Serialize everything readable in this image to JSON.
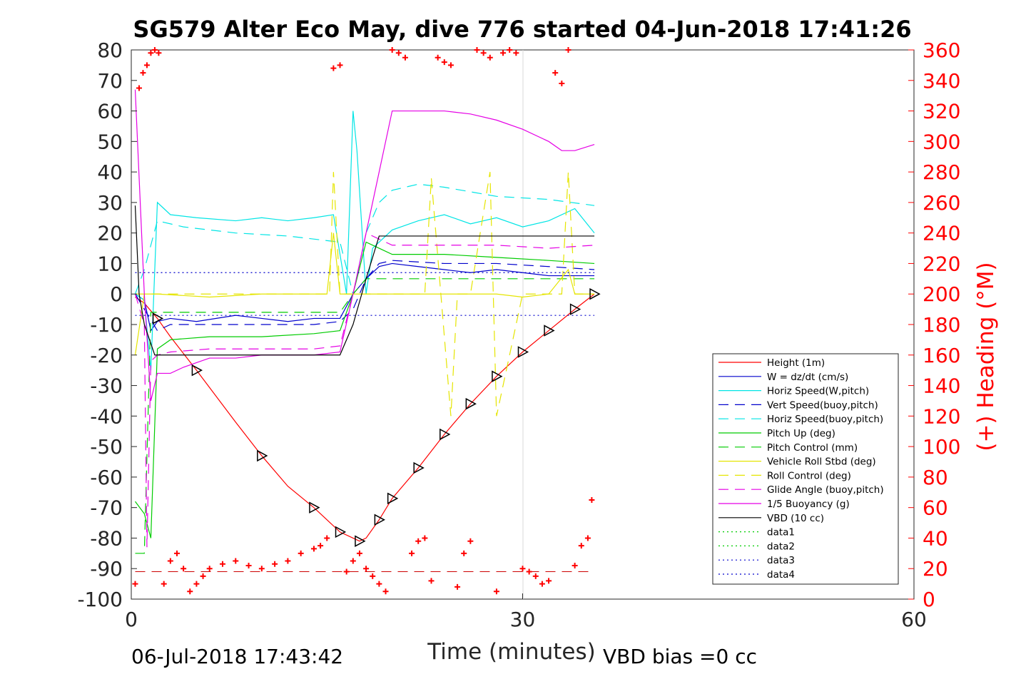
{
  "chart_data": {
    "type": "line",
    "title": "SG579 Alter Eco May, dive 776 started 04-Jun-2018 17:41:26",
    "xlabel": "Time (minutes)",
    "ylabel": "",
    "y2label": "(+) Heading (°M)",
    "xlim": [
      0,
      60
    ],
    "ylim": [
      -100,
      80
    ],
    "y2lim": [
      0,
      360
    ],
    "xticks": [
      0,
      30,
      60
    ],
    "yticks": [
      80,
      70,
      60,
      50,
      40,
      30,
      20,
      10,
      0,
      -10,
      -20,
      -30,
      -40,
      -50,
      -60,
      -70,
      -80,
      -90,
      -100
    ],
    "y2ticks": [
      360,
      340,
      320,
      300,
      280,
      260,
      240,
      220,
      200,
      180,
      160,
      140,
      120,
      100,
      80,
      60,
      40,
      20,
      0
    ],
    "grid": "x only at 30",
    "legend_position": "lower-right",
    "footer_left": "06-Jul-2018 17:43:42",
    "footer_right": "VBD bias =0 cc",
    "series": [
      {
        "name": "Height (1m)",
        "color": "#ff0000",
        "dash": "solid",
        "x": [
          0.3,
          1,
          2,
          3,
          5,
          8,
          10,
          12,
          14,
          15,
          16,
          17,
          17.5,
          18,
          19,
          20,
          22,
          24,
          26,
          28,
          30,
          32,
          34,
          35.5
        ],
        "y": [
          -1,
          -3,
          -8,
          -14,
          -25,
          -42,
          -53,
          -63,
          -70,
          -74,
          -78,
          -80,
          -81,
          -80,
          -74,
          -67,
          -57,
          -46,
          -36,
          -27,
          -19,
          -12,
          -5,
          0
        ]
      },
      {
        "name": "W = dz/dt (cm/s)",
        "color": "#0000cc",
        "dash": "solid",
        "x": [
          0.3,
          1,
          1.5,
          2,
          3,
          5,
          8,
          10,
          12,
          14,
          16,
          17,
          18,
          19,
          20,
          22,
          24,
          26,
          28,
          30,
          32,
          34,
          35.5
        ],
        "y": [
          0,
          -2,
          -12,
          -9,
          -8,
          -9,
          -7,
          -8,
          -9,
          -8,
          -8,
          0,
          5,
          9,
          10,
          9,
          8,
          7,
          8,
          7,
          6,
          6,
          6
        ]
      },
      {
        "name": "Horiz Speed(W,pitch)",
        "color": "#00e5e5",
        "dash": "solid",
        "x": [
          0.3,
          1,
          1.5,
          2,
          3,
          5,
          8,
          10,
          12,
          14,
          15.5,
          16.5,
          17,
          17.3,
          18,
          18.5,
          20,
          22,
          24,
          26,
          28,
          30,
          32,
          34,
          35.5
        ],
        "y": [
          0,
          -2,
          -25,
          30,
          26,
          25,
          24,
          25,
          24,
          25,
          26,
          0,
          60,
          47,
          0,
          15,
          21,
          24,
          26,
          23,
          25,
          22,
          24,
          28,
          20
        ]
      },
      {
        "name": "Vert Speed(buoy,pitch)",
        "color": "#0000cc",
        "dash": "long",
        "x": [
          0.3,
          1,
          2,
          3,
          6,
          10,
          14,
          16,
          17,
          18,
          19,
          20,
          24,
          28,
          32,
          35.5
        ],
        "y": [
          0,
          -5,
          -12,
          -10,
          -10,
          -10,
          -10,
          -9,
          -5,
          5,
          10,
          11,
          10,
          10,
          9,
          8
        ]
      },
      {
        "name": "Horiz Speed(buoy,pitch)",
        "color": "#00e5e5",
        "dash": "long",
        "x": [
          0.3,
          1,
          2,
          4,
          8,
          12,
          16,
          17,
          18,
          19,
          20,
          22,
          24,
          28,
          32,
          35.5
        ],
        "y": [
          0,
          8,
          24,
          22,
          20,
          19,
          17,
          0,
          20,
          30,
          34,
          36,
          35,
          32,
          31,
          29
        ]
      },
      {
        "name": "Pitch Up (deg)",
        "color": "#00cc00",
        "dash": "solid",
        "x": [
          0.3,
          1,
          1.5,
          2,
          3,
          6,
          10,
          14,
          16,
          17,
          18,
          19,
          20,
          24,
          28,
          32,
          35.5
        ],
        "y": [
          -68,
          -72,
          -80,
          -18,
          -15,
          -14,
          -14,
          -13,
          -12,
          0,
          17,
          15,
          13,
          13,
          12,
          11,
          10
        ]
      },
      {
        "name": "Pitch Control (mm)",
        "color": "#00cc00",
        "dash": "long",
        "x": [
          0.3,
          1,
          1.5,
          2,
          6,
          10,
          14,
          16,
          17,
          18,
          19,
          24,
          30,
          35.5
        ],
        "y": [
          -85,
          -85,
          -6,
          -6,
          -6,
          -6,
          -6,
          -6,
          0,
          5,
          5,
          5,
          5,
          5
        ]
      },
      {
        "name": "Vehicle Roll Stbd (deg)",
        "color": "#e5e500",
        "dash": "solid",
        "x": [
          0.3,
          1,
          2,
          6,
          10,
          14,
          15,
          15.5,
          16,
          17,
          18,
          19,
          20,
          22,
          24,
          26,
          28,
          30,
          32,
          33.5,
          34,
          35.5
        ],
        "y": [
          -20,
          0,
          0,
          -1,
          0,
          0,
          0,
          20,
          0,
          0,
          0,
          0,
          0,
          0,
          0,
          0,
          0,
          -1,
          0,
          8,
          0,
          0
        ]
      },
      {
        "name": "Roll Control (deg)",
        "color": "#e5e500",
        "dash": "long",
        "x": [
          0.3,
          1,
          2,
          6,
          10,
          14,
          15.2,
          15.5,
          16,
          17,
          18,
          20,
          22.5,
          23,
          24.5,
          25,
          26,
          27.5,
          28,
          30,
          33,
          33.5,
          34,
          35.5
        ],
        "y": [
          0,
          0,
          0,
          0,
          0,
          0,
          0,
          40,
          0,
          0,
          0,
          0,
          0,
          38,
          -40,
          0,
          0,
          40,
          -40,
          0,
          0,
          40,
          0,
          0
        ]
      },
      {
        "name": "Glide Angle (buoy,pitch)",
        "color": "#e500e5",
        "dash": "long",
        "x": [
          0.3,
          1,
          1.2,
          1.5,
          2,
          3,
          6,
          10,
          14,
          16,
          17,
          18,
          20,
          24,
          28,
          32,
          35.5
        ],
        "y": [
          0,
          -10,
          -83,
          -22,
          -20,
          -19,
          -18,
          -18,
          -18,
          -17,
          0,
          20,
          16,
          16,
          16,
          15,
          16
        ]
      },
      {
        "name": "1/5 Buoyancy (g)",
        "color": "#e500e5",
        "dash": "solid",
        "x": [
          0.3,
          1,
          1.5,
          2,
          3,
          4,
          6,
          8,
          10,
          12,
          14,
          16,
          17,
          18,
          19,
          20,
          22,
          24,
          26,
          28,
          30,
          32,
          33,
          34,
          35.5
        ],
        "y": [
          67,
          0,
          -35,
          -26,
          -26,
          -24,
          -21,
          -21,
          -20,
          -20,
          -20,
          -19,
          0,
          20,
          40,
          60,
          60,
          60,
          59,
          57,
          54,
          50,
          47,
          47,
          49
        ]
      },
      {
        "name": "VBD (10 cc)",
        "color": "#000000",
        "dash": "solid",
        "x": [
          0.3,
          0.6,
          1,
          1.8,
          2,
          5,
          10,
          14,
          16,
          17,
          18,
          19,
          20,
          24,
          28,
          32,
          35.5
        ],
        "y": [
          29,
          0,
          -10,
          -20,
          -20,
          -20,
          -20,
          -20,
          -20,
          -10,
          5,
          19,
          19,
          19,
          19,
          19,
          19
        ]
      },
      {
        "name": "data1",
        "color": "#00cc00",
        "dash": "dotted",
        "x": [],
        "y": []
      },
      {
        "name": "data2",
        "color": "#00cc00",
        "dash": "dotted",
        "x": [],
        "y": []
      },
      {
        "name": "data3",
        "color": "#0000cc",
        "dash": "dotted",
        "x": [
          0.3,
          35.5
        ],
        "y": [
          7,
          7
        ]
      },
      {
        "name": "data4",
        "color": "#0000cc",
        "dash": "dotted",
        "x": [
          0.3,
          35.5
        ],
        "y": [
          -7,
          -7
        ]
      }
    ],
    "reference_line": {
      "color": "#cc0000",
      "dash": "long",
      "x": [
        0.3,
        35.5
      ],
      "y": [
        -91,
        -91
      ]
    },
    "heading_points": {
      "color": "#ff0000",
      "marker": "+",
      "x": [
        0.3,
        0.6,
        0.9,
        1.2,
        1.5,
        1.8,
        2.1,
        2.5,
        3,
        3.5,
        4,
        4.5,
        5,
        5.5,
        6,
        7,
        8,
        9,
        10,
        11,
        12,
        13,
        14,
        14.5,
        15,
        15.5,
        16,
        16.5,
        17,
        17.5,
        18,
        18.5,
        19,
        19.5,
        20,
        20.5,
        21,
        21.5,
        22,
        22.5,
        23,
        23.5,
        24,
        24.5,
        25,
        25.5,
        26,
        26.5,
        27,
        27.5,
        28,
        28.5,
        29,
        29.5,
        30,
        30.5,
        31,
        31.5,
        32,
        32.5,
        33,
        33.5,
        34,
        34.5,
        35,
        35.3
      ],
      "y": [
        10,
        335,
        345,
        350,
        358,
        360,
        358,
        10,
        25,
        30,
        20,
        5,
        10,
        15,
        20,
        23,
        25,
        22,
        20,
        23,
        25,
        30,
        33,
        35,
        40,
        348,
        350,
        18,
        25,
        30,
        20,
        15,
        10,
        5,
        360,
        358,
        355,
        30,
        38,
        40,
        12,
        355,
        352,
        350,
        8,
        30,
        38,
        360,
        358,
        355,
        5,
        358,
        360,
        358,
        20,
        18,
        15,
        10,
        12,
        345,
        338,
        360,
        22,
        35,
        40,
        65
      ]
    }
  }
}
